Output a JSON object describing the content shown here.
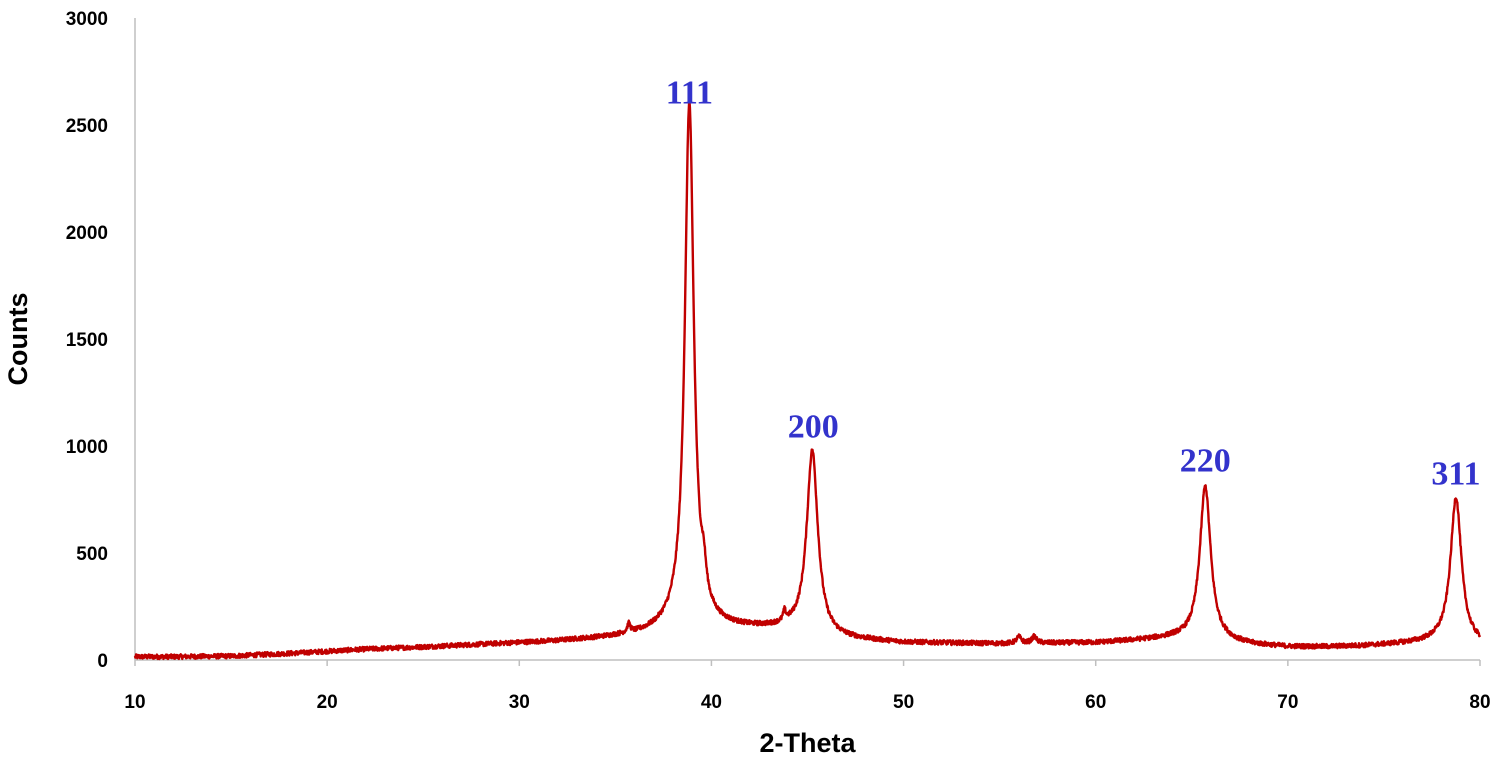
{
  "chart_data": {
    "type": "line",
    "title": "",
    "xlabel": "2-Theta",
    "ylabel": "Counts",
    "xlim": [
      10,
      80
    ],
    "ylim": [
      0,
      3000
    ],
    "xticks": [
      10,
      20,
      30,
      40,
      50,
      60,
      70,
      80
    ],
    "yticks": [
      0,
      500,
      1000,
      1500,
      2000,
      2500,
      3000
    ],
    "grid": false,
    "legend": "none",
    "series": [
      {
        "color": "#c00000",
        "baseline": [
          [
            10,
            15
          ],
          [
            12,
            15
          ],
          [
            15,
            18
          ],
          [
            18,
            30
          ],
          [
            20,
            40
          ],
          [
            22,
            50
          ],
          [
            25,
            60
          ],
          [
            28,
            72
          ],
          [
            30,
            80
          ],
          [
            32,
            88
          ],
          [
            34,
            100
          ],
          [
            36,
            115
          ],
          [
            37,
            130
          ],
          [
            38,
            150
          ],
          [
            40,
            150
          ],
          [
            42,
            145
          ],
          [
            44,
            140
          ],
          [
            46,
            100
          ],
          [
            48,
            90
          ],
          [
            50,
            80
          ],
          [
            55,
            75
          ],
          [
            60,
            80
          ],
          [
            62,
            90
          ],
          [
            64,
            100
          ],
          [
            66,
            90
          ],
          [
            68,
            70
          ],
          [
            70,
            60
          ],
          [
            72,
            60
          ],
          [
            74,
            65
          ],
          [
            76,
            75
          ],
          [
            78,
            85
          ],
          [
            80,
            70
          ]
        ],
        "peaks": [
          {
            "x": 38.85,
            "y": 2450,
            "width": 0.28
          },
          {
            "x": 45.25,
            "y": 860,
            "width": 0.35
          },
          {
            "x": 65.7,
            "y": 720,
            "width": 0.34
          },
          {
            "x": 78.75,
            "y": 680,
            "width": 0.34
          },
          {
            "x": 39.6,
            "y": 120,
            "width": 0.15
          },
          {
            "x": 35.7,
            "y": 40,
            "width": 0.1
          },
          {
            "x": 43.8,
            "y": 45,
            "width": 0.08
          },
          {
            "x": 56.0,
            "y": 30,
            "width": 0.15
          },
          {
            "x": 56.8,
            "y": 30,
            "width": 0.15
          }
        ]
      }
    ],
    "annotations": [
      {
        "text": "111",
        "x": 38.85,
        "y": 2600,
        "color": "#3333cc"
      },
      {
        "text": "200",
        "x": 45.3,
        "y": 1040,
        "color": "#3333cc"
      },
      {
        "text": "220",
        "x": 65.7,
        "y": 880,
        "color": "#3333cc"
      },
      {
        "text": "311",
        "x": 78.75,
        "y": 820,
        "color": "#3333cc"
      }
    ]
  }
}
